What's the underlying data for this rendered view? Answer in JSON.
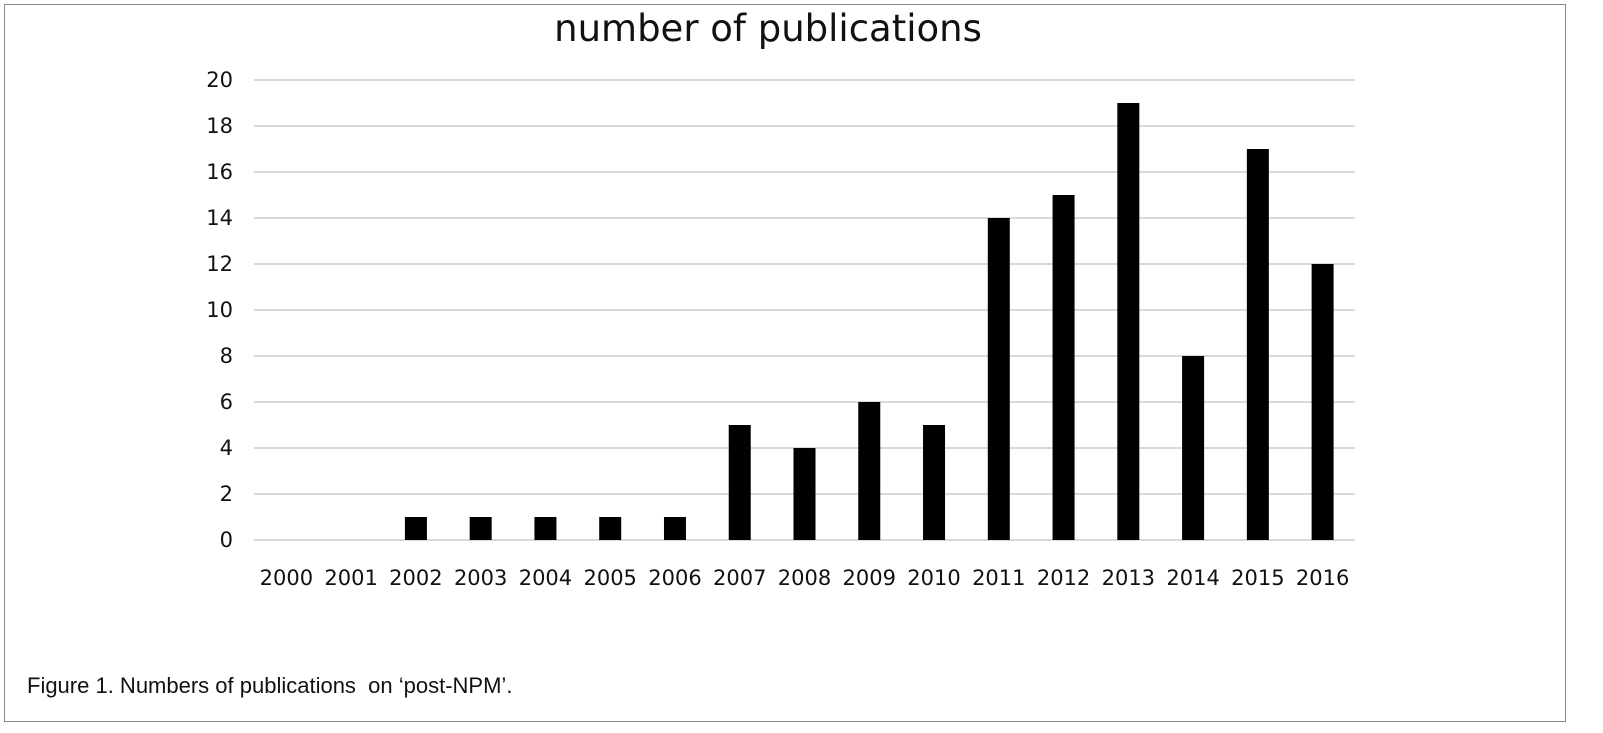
{
  "caption": "Figure 1. Numbers of publications  on ‘post-NPM’.",
  "chart_data": {
    "type": "bar",
    "title": "number of publications",
    "xlabel": "",
    "ylabel": "",
    "categories": [
      "2000",
      "2001",
      "2002",
      "2003",
      "2004",
      "2005",
      "2006",
      "2007",
      "2008",
      "2009",
      "2010",
      "2011",
      "2012",
      "2013",
      "2014",
      "2015",
      "2016"
    ],
    "values": [
      0,
      0,
      1,
      1,
      1,
      1,
      1,
      5,
      4,
      6,
      5,
      14,
      15,
      19,
      8,
      17,
      12
    ],
    "ylim": [
      0,
      20
    ],
    "yticks": [
      0,
      2,
      4,
      6,
      8,
      10,
      12,
      14,
      16,
      18,
      20
    ],
    "grid": "horizontal",
    "legend": "none",
    "bar_color": "#000000",
    "grid_color": "#d9d9d9"
  }
}
